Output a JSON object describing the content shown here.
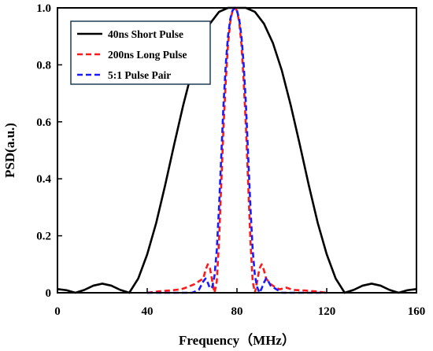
{
  "chart_data": {
    "type": "line",
    "xlabel": "Frequency（MHz）",
    "ylabel": "PSD(a.u.)",
    "xlim": [
      0,
      160
    ],
    "ylim": [
      0,
      1.0
    ],
    "xticks": [
      "0",
      "40",
      "80",
      "120",
      "160"
    ],
    "yticks": [
      "0",
      "0.2",
      "0.4",
      "0.6",
      "0.8",
      "1.0"
    ],
    "grid": false,
    "legend_position": "top-left",
    "series": [
      {
        "name": "40ns Short Pulse",
        "color": "#000000",
        "dash": "solid",
        "x": [
          0,
          4,
          8,
          12,
          16,
          20,
          24,
          28,
          32,
          36,
          40,
          44,
          48,
          52,
          56,
          60,
          64,
          68,
          72,
          76,
          80,
          84,
          88,
          92,
          96,
          100,
          104,
          108,
          112,
          116,
          120,
          124,
          128,
          132,
          136,
          140,
          144,
          148,
          152,
          156,
          160
        ],
        "y": [
          0.013,
          0.009,
          0.0,
          0.01,
          0.025,
          0.032,
          0.025,
          0.01,
          0.0,
          0.05,
          0.135,
          0.245,
          0.378,
          0.52,
          0.657,
          0.78,
          0.877,
          0.945,
          0.986,
          1.0,
          1.0,
          1.0,
          0.986,
          0.945,
          0.877,
          0.78,
          0.657,
          0.52,
          0.378,
          0.245,
          0.135,
          0.05,
          0.0,
          0.01,
          0.025,
          0.032,
          0.025,
          0.01,
          0.0,
          0.009,
          0.013
        ]
      },
      {
        "name": "200ns Long Pulse",
        "color": "#ff1a1a",
        "dash": "dashed",
        "x": [
          40,
          45,
          50,
          55,
          58,
          61,
          63,
          65,
          66,
          67,
          68,
          69,
          70,
          71,
          72,
          73,
          74,
          75,
          76,
          77,
          78,
          79,
          80,
          81,
          82,
          83,
          84,
          85,
          86,
          87,
          88,
          89,
          90,
          91,
          92,
          93,
          94,
          95,
          97,
          99,
          102,
          105,
          110,
          115,
          120
        ],
        "y": [
          0.0,
          0.005,
          0.008,
          0.012,
          0.02,
          0.03,
          0.04,
          0.05,
          0.08,
          0.1,
          0.085,
          0.04,
          0.0,
          0.04,
          0.18,
          0.38,
          0.58,
          0.74,
          0.87,
          0.95,
          0.99,
          1.0,
          0.99,
          0.95,
          0.87,
          0.74,
          0.58,
          0.38,
          0.18,
          0.04,
          0.0,
          0.04,
          0.085,
          0.1,
          0.08,
          0.05,
          0.04,
          0.03,
          0.02,
          0.012,
          0.018,
          0.01,
          0.008,
          0.005,
          0.0
        ]
      },
      {
        "name": "5:1 Pulse Pair",
        "color": "#1a1aff",
        "dash": "dashed",
        "x": [
          40,
          55,
          60,
          63,
          64,
          65,
          66,
          67,
          68,
          69,
          70,
          71,
          72,
          73,
          74,
          75,
          76,
          77,
          78,
          79,
          80,
          81,
          82,
          83,
          84,
          85,
          86,
          87,
          88,
          89,
          90,
          91,
          92,
          93,
          94,
          95,
          100,
          120
        ],
        "y": [
          0.0,
          0.0,
          0.0,
          0.01,
          0.025,
          0.04,
          0.05,
          0.035,
          0.015,
          0.02,
          0.06,
          0.15,
          0.3,
          0.48,
          0.66,
          0.8,
          0.9,
          0.96,
          0.99,
          1.0,
          0.99,
          0.96,
          0.9,
          0.8,
          0.66,
          0.48,
          0.3,
          0.15,
          0.06,
          0.02,
          0.0,
          0.015,
          0.035,
          0.05,
          0.04,
          0.025,
          0.0,
          0.0
        ]
      }
    ]
  }
}
